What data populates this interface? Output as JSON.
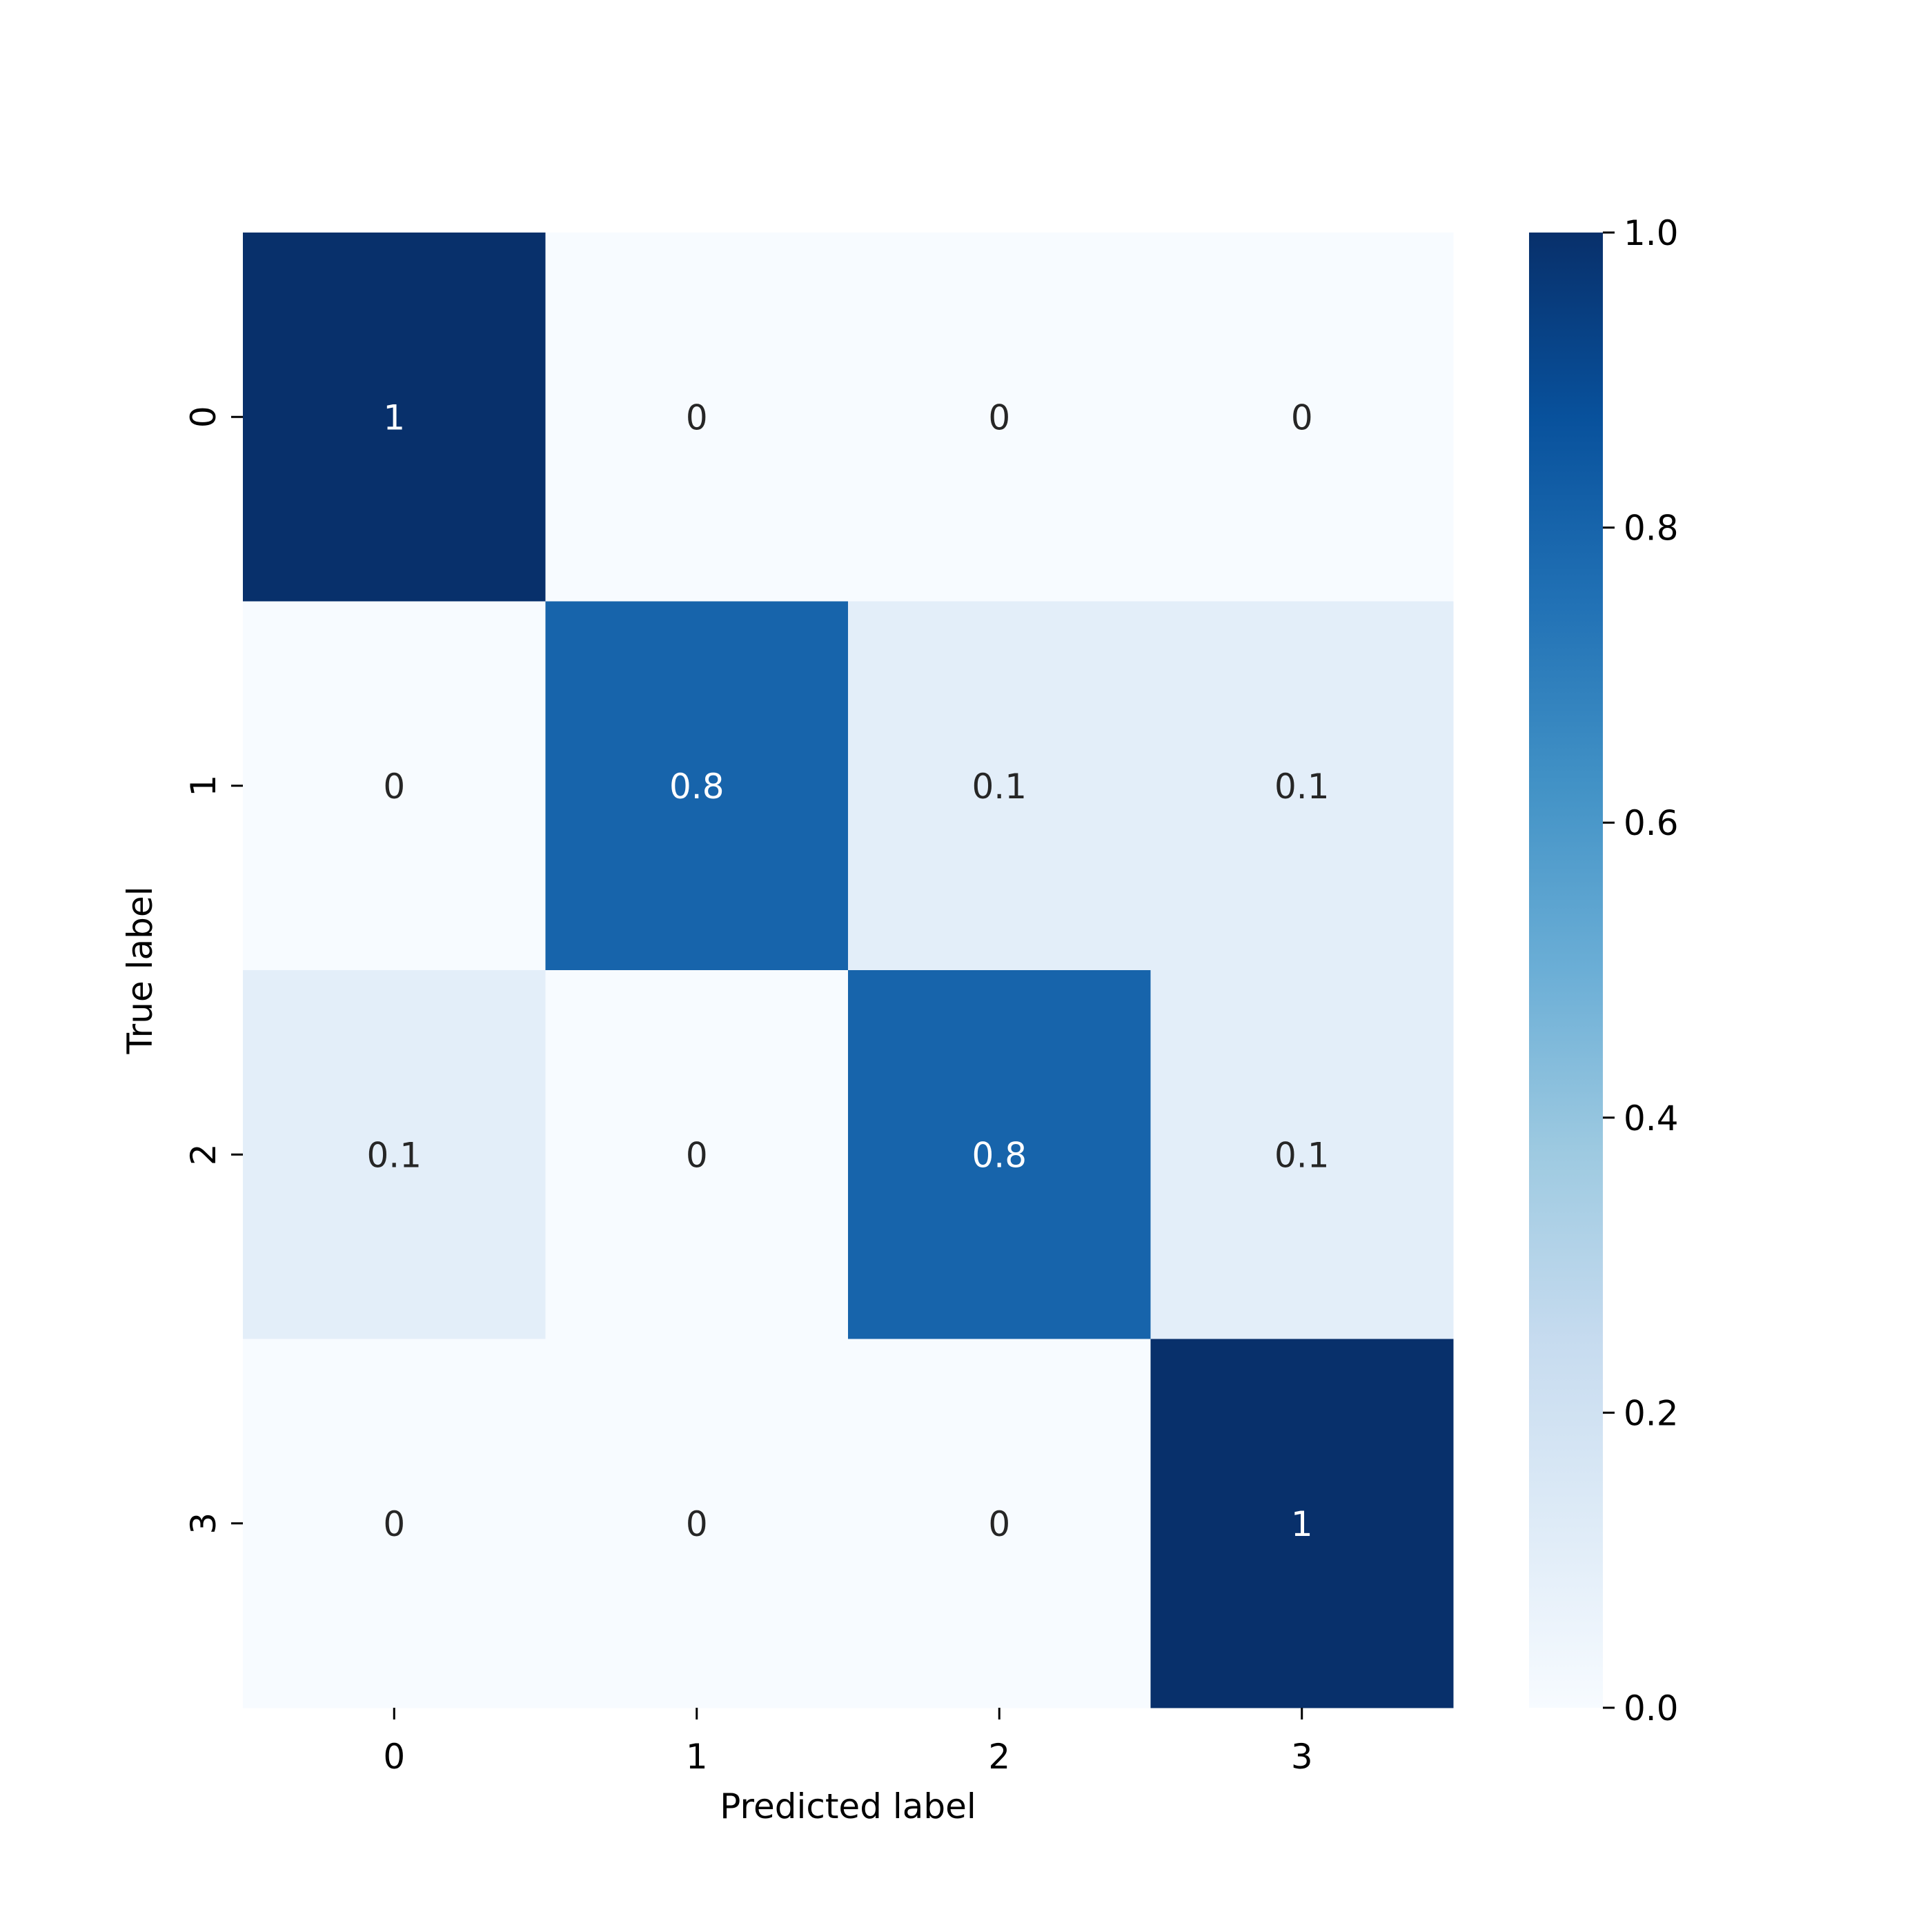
{
  "chart_data": {
    "type": "heatmap",
    "title": "",
    "xlabel": "Predicted label",
    "ylabel": "True label",
    "x_categories": [
      "0",
      "1",
      "2",
      "3"
    ],
    "y_categories": [
      "0",
      "1",
      "2",
      "3"
    ],
    "values": [
      [
        1,
        0,
        0,
        0
      ],
      [
        0,
        0.8,
        0.1,
        0.1
      ],
      [
        0.1,
        0,
        0.8,
        0.1
      ],
      [
        0,
        0,
        0,
        1
      ]
    ],
    "annotations": [
      [
        "1",
        "0",
        "0",
        "0"
      ],
      [
        "0",
        "0.8",
        "0.1",
        "0.1"
      ],
      [
        "0.1",
        "0",
        "0.8",
        "0.1"
      ],
      [
        "0",
        "0",
        "0",
        "1"
      ]
    ],
    "colormap": "Blues",
    "color_low": "#f7fbff",
    "color_high": "#08306b",
    "vmin": 0.0,
    "vmax": 1.0,
    "colorbar": {
      "ticks": [
        0.0,
        0.2,
        0.4,
        0.6,
        0.8,
        1.0
      ],
      "tick_labels": [
        "0.0",
        "0.2",
        "0.4",
        "0.6",
        "0.8",
        "1.0"
      ],
      "placement": "right"
    },
    "grid": false,
    "text_color_dark": "#262626",
    "text_color_light": "#ffffff"
  }
}
